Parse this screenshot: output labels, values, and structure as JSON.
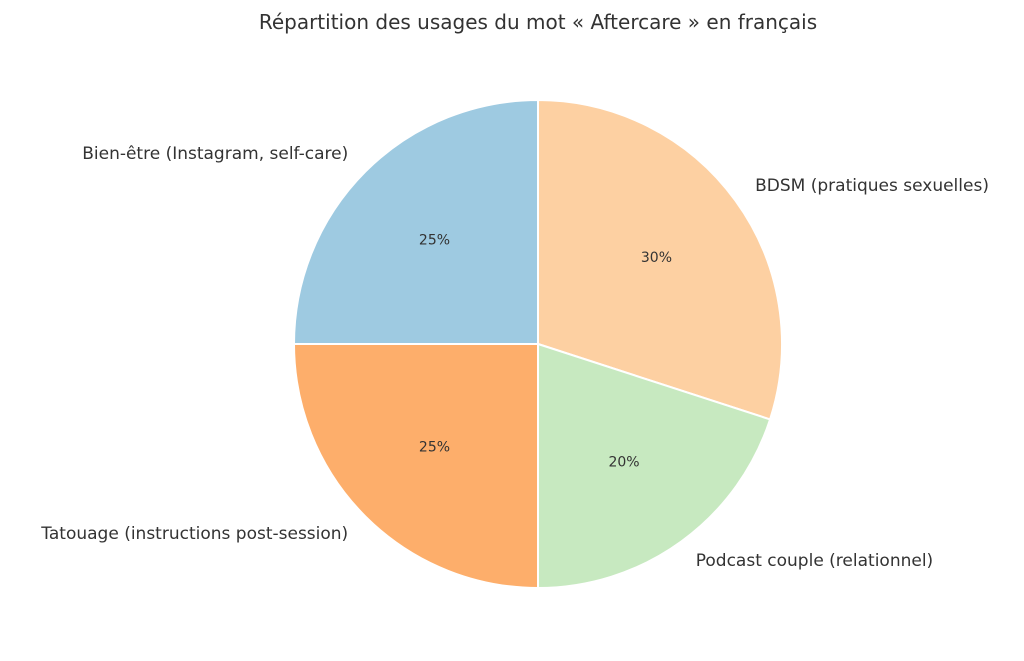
{
  "chart_data": {
    "type": "pie",
    "title": "Répartition des usages du mot « Aftercare » en français",
    "labels": [
      "BDSM (pratiques sexuelles)",
      "Podcast couple (relationnel)",
      "Tatouage (instructions post-session)",
      "Bien-être (Instagram, self-care)"
    ],
    "values": [
      30,
      20,
      25,
      25
    ],
    "percent_labels": [
      "30%",
      "20%",
      "25%",
      "25%"
    ],
    "colors": [
      "#fdd0a2",
      "#c7e9c0",
      "#fdae6b",
      "#9ecae1"
    ],
    "start_angle": 90,
    "direction": "clockwise",
    "legend": "none"
  }
}
